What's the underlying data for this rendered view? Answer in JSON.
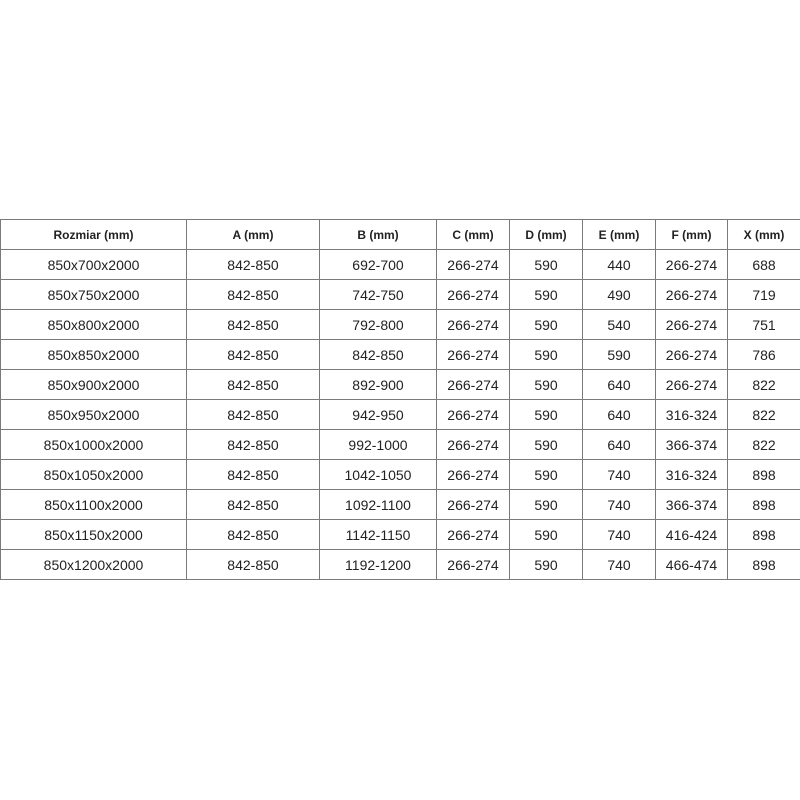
{
  "table": {
    "headers": [
      "Rozmiar (mm)",
      "A (mm)",
      "B (mm)",
      "C (mm)",
      "D (mm)",
      "E (mm)",
      "F (mm)",
      "X (mm)"
    ],
    "rows": [
      [
        "850x700x2000",
        "842-850",
        "692-700",
        "266-274",
        "590",
        "440",
        "266-274",
        "688"
      ],
      [
        "850x750x2000",
        "842-850",
        "742-750",
        "266-274",
        "590",
        "490",
        "266-274",
        "719"
      ],
      [
        "850x800x2000",
        "842-850",
        "792-800",
        "266-274",
        "590",
        "540",
        "266-274",
        "751"
      ],
      [
        "850x850x2000",
        "842-850",
        "842-850",
        "266-274",
        "590",
        "590",
        "266-274",
        "786"
      ],
      [
        "850x900x2000",
        "842-850",
        "892-900",
        "266-274",
        "590",
        "640",
        "266-274",
        "822"
      ],
      [
        "850x950x2000",
        "842-850",
        "942-950",
        "266-274",
        "590",
        "640",
        "316-324",
        "822"
      ],
      [
        "850x1000x2000",
        "842-850",
        "992-1000",
        "266-274",
        "590",
        "640",
        "366-374",
        "822"
      ],
      [
        "850x1050x2000",
        "842-850",
        "1042-1050",
        "266-274",
        "590",
        "740",
        "316-324",
        "898"
      ],
      [
        "850x1100x2000",
        "842-850",
        "1092-1100",
        "266-274",
        "590",
        "740",
        "366-374",
        "898"
      ],
      [
        "850x1150x2000",
        "842-850",
        "1142-1150",
        "266-274",
        "590",
        "740",
        "416-424",
        "898"
      ],
      [
        "850x1200x2000",
        "842-850",
        "1192-1200",
        "266-274",
        "590",
        "740",
        "466-474",
        "898"
      ]
    ]
  }
}
